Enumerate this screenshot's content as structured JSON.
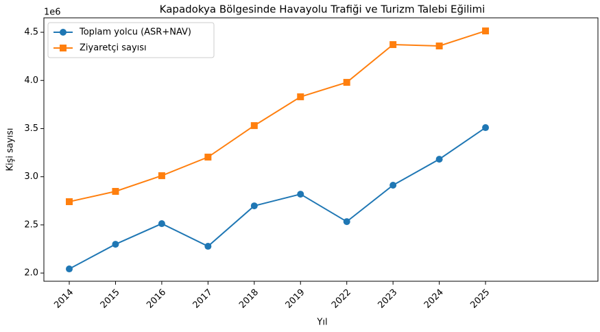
{
  "chart_data": {
    "type": "line",
    "title": "Kapadokya Bölgesinde Havayolu Trafiği ve Turizm Talebi Eğilimi",
    "x_label": "Yıl",
    "y_label": "Kişi sayısı",
    "y_offset_label": "1e6",
    "categories": [
      "2014",
      "2015",
      "2016",
      "2017",
      "2018",
      "2019",
      "2022",
      "2023",
      "2024",
      "2025"
    ],
    "series": [
      {
        "name": "Toplam yolcu (ASR+NAV)",
        "color": "#1f77b4",
        "marker": "circle",
        "values": [
          2043000,
          2299000,
          2513000,
          2278000,
          2698000,
          2819000,
          2534000,
          2912000,
          3182000,
          3510000
        ]
      },
      {
        "name": "Ziyaretçi sayısı",
        "color": "#ff7f0e",
        "marker": "square",
        "values": [
          2741000,
          2848000,
          3011000,
          3204000,
          3531000,
          3830000,
          3980000,
          4372000,
          4358000,
          4514000
        ]
      }
    ],
    "ylim": [
      1915000,
      4650000
    ],
    "yticks": [
      {
        "value": 2000000,
        "label": "2.0"
      },
      {
        "value": 2500000,
        "label": "2.5"
      },
      {
        "value": 3000000,
        "label": "3.0"
      },
      {
        "value": 3500000,
        "label": "3.5"
      },
      {
        "value": 4000000,
        "label": "4.0"
      },
      {
        "value": 4500000,
        "label": "4.5"
      }
    ],
    "legend": "upper left",
    "grid": false
  }
}
